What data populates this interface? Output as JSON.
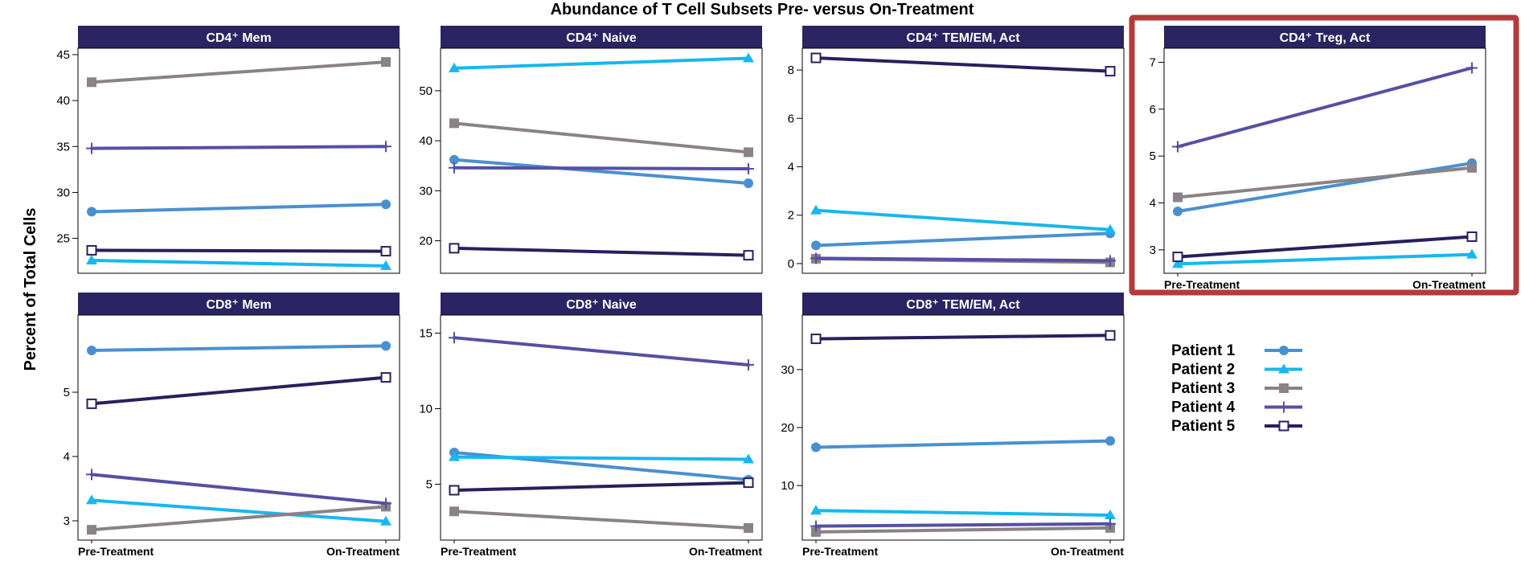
{
  "title": "Abundance of T Cell Subsets Pre- versus On-Treatment",
  "ylabel": "Percent of Total Cells",
  "x_categories": [
    "Pre-Treatment",
    "On-Treatment"
  ],
  "colors": {
    "panel_header": "#2a2463",
    "highlight_box": "#b53a3a",
    "axis": "#000000"
  },
  "series_styles": [
    {
      "name": "Patient 1",
      "color": "#4a90d0",
      "marker": "circle"
    },
    {
      "name": "Patient 2",
      "color": "#16b8ee",
      "marker": "triangle"
    },
    {
      "name": "Patient 3",
      "color": "#8a8286",
      "marker": "square"
    },
    {
      "name": "Patient 4",
      "color": "#5550a3",
      "marker": "plus"
    },
    {
      "name": "Patient 5",
      "color": "#27205e",
      "marker": "open-square"
    }
  ],
  "chart_data": [
    {
      "type": "line",
      "title": "CD4⁺ Mem",
      "categories": [
        "Pre-Treatment",
        "On-Treatment"
      ],
      "show_x_ticks": false,
      "yticks": [
        25,
        30,
        35,
        40,
        45
      ],
      "ylim": [
        21.2,
        45.7
      ],
      "series": [
        {
          "name": "Patient 1",
          "values": [
            27.9,
            28.7
          ]
        },
        {
          "name": "Patient 2",
          "values": [
            22.6,
            22.0
          ]
        },
        {
          "name": "Patient 3",
          "values": [
            42.0,
            44.2
          ]
        },
        {
          "name": "Patient 4",
          "values": [
            34.8,
            35.0
          ]
        },
        {
          "name": "Patient 5",
          "values": [
            23.7,
            23.6
          ]
        }
      ]
    },
    {
      "type": "line",
      "title": "CD4⁺ Naive",
      "categories": [
        "Pre-Treatment",
        "On-Treatment"
      ],
      "show_x_ticks": false,
      "yticks": [
        20,
        30,
        40,
        50
      ],
      "ylim": [
        13.5,
        58.5
      ],
      "series": [
        {
          "name": "Patient 1",
          "values": [
            36.2,
            31.5
          ]
        },
        {
          "name": "Patient 2",
          "values": [
            54.5,
            56.5
          ]
        },
        {
          "name": "Patient 3",
          "values": [
            43.5,
            37.7
          ]
        },
        {
          "name": "Patient 4",
          "values": [
            34.6,
            34.4
          ]
        },
        {
          "name": "Patient 5",
          "values": [
            18.5,
            17.1
          ]
        }
      ]
    },
    {
      "type": "line",
      "title": "CD4⁺ TEM/EM, Act",
      "categories": [
        "Pre-Treatment",
        "On-Treatment"
      ],
      "show_x_ticks": false,
      "yticks": [
        0,
        2,
        4,
        6,
        8
      ],
      "ylim": [
        -0.4,
        8.9
      ],
      "series": [
        {
          "name": "Patient 1",
          "values": [
            0.75,
            1.25
          ]
        },
        {
          "name": "Patient 2",
          "values": [
            2.2,
            1.4
          ]
        },
        {
          "name": "Patient 3",
          "values": [
            0.2,
            0.05
          ]
        },
        {
          "name": "Patient 4",
          "values": [
            0.22,
            0.12
          ]
        },
        {
          "name": "Patient 5",
          "values": [
            8.5,
            7.95
          ]
        }
      ]
    },
    {
      "type": "line",
      "title": "CD4⁺ Treg, Act",
      "categories": [
        "Pre-Treatment",
        "On-Treatment"
      ],
      "show_x_ticks": true,
      "highlight": true,
      "yticks": [
        3,
        4,
        5,
        6,
        7
      ],
      "ylim": [
        2.5,
        7.3
      ],
      "series": [
        {
          "name": "Patient 1",
          "values": [
            3.82,
            4.85
          ]
        },
        {
          "name": "Patient 2",
          "values": [
            2.7,
            2.9
          ]
        },
        {
          "name": "Patient 3",
          "values": [
            4.12,
            4.75
          ]
        },
        {
          "name": "Patient 4",
          "values": [
            5.2,
            6.88
          ]
        },
        {
          "name": "Patient 5",
          "values": [
            2.85,
            3.28
          ]
        }
      ]
    },
    {
      "type": "line",
      "title": "CD8⁺ Mem",
      "categories": [
        "Pre-Treatment",
        "On-Treatment"
      ],
      "show_x_ticks": true,
      "yticks": [
        3,
        4,
        5
      ],
      "ylim": [
        2.7,
        6.2
      ],
      "series": [
        {
          "name": "Patient 1",
          "values": [
            5.65,
            5.72
          ]
        },
        {
          "name": "Patient 2",
          "values": [
            3.32,
            2.99
          ]
        },
        {
          "name": "Patient 3",
          "values": [
            2.86,
            3.22
          ]
        },
        {
          "name": "Patient 4",
          "values": [
            3.72,
            3.27
          ]
        },
        {
          "name": "Patient 5",
          "values": [
            4.82,
            5.23
          ]
        }
      ]
    },
    {
      "type": "line",
      "title": "CD8⁺ Naive",
      "categories": [
        "Pre-Treatment",
        "On-Treatment"
      ],
      "show_x_ticks": true,
      "yticks": [
        5,
        10,
        15
      ],
      "ylim": [
        1.3,
        16.2
      ],
      "series": [
        {
          "name": "Patient 1",
          "values": [
            7.1,
            5.3
          ]
        },
        {
          "name": "Patient 2",
          "values": [
            6.8,
            6.65
          ]
        },
        {
          "name": "Patient 3",
          "values": [
            3.2,
            2.1
          ]
        },
        {
          "name": "Patient 4",
          "values": [
            14.7,
            12.9
          ]
        },
        {
          "name": "Patient 5",
          "values": [
            4.6,
            5.1
          ]
        }
      ]
    },
    {
      "type": "line",
      "title": "CD8⁺ TEM/EM, Act",
      "categories": [
        "Pre-Treatment",
        "On-Treatment"
      ],
      "show_x_ticks": true,
      "yticks": [
        10,
        20,
        30
      ],
      "ylim": [
        0.6,
        39.4
      ],
      "series": [
        {
          "name": "Patient 1",
          "values": [
            16.6,
            17.7
          ]
        },
        {
          "name": "Patient 2",
          "values": [
            5.7,
            4.9
          ]
        },
        {
          "name": "Patient 3",
          "values": [
            2.0,
            2.7
          ]
        },
        {
          "name": "Patient 4",
          "values": [
            3.0,
            3.4
          ]
        },
        {
          "name": "Patient 5",
          "values": [
            35.3,
            35.9
          ]
        }
      ]
    }
  ]
}
